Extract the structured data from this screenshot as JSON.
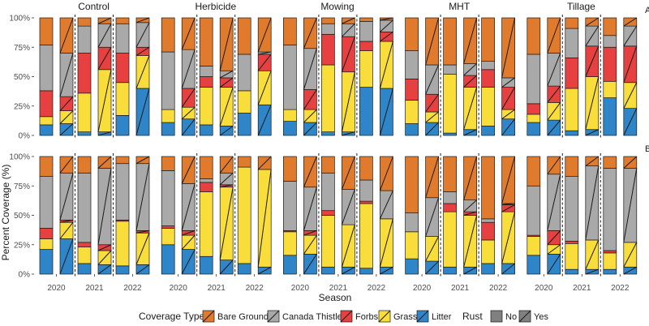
{
  "chart_data": {
    "type": "bar",
    "subtype": "stacked-percent",
    "ylabel": "Percent Coverage (%)",
    "xlabel": "Season",
    "y_ticks": [
      "0%",
      "25%",
      "50%",
      "75%",
      "100%"
    ],
    "ylim": [
      0,
      100
    ],
    "treatments": [
      "Control",
      "Herbicide",
      "Mowing",
      "MHT",
      "Tillage"
    ],
    "years": [
      "2020",
      "2021",
      "2022"
    ],
    "row_labels": [
      "A",
      "B"
    ],
    "stack_order": [
      "Litter",
      "Grass",
      "Forbs",
      "Canada Thistle",
      "Bare Ground"
    ],
    "legend": {
      "coverage_title": "Coverage Type",
      "coverage_items": [
        {
          "label": "Bare Ground",
          "color": "#E07B2E"
        },
        {
          "label": "Canada Thistle",
          "color": "#A9A9A9"
        },
        {
          "label": "Forbs",
          "color": "#E64040"
        },
        {
          "label": "Grass",
          "color": "#F9DD3A"
        },
        {
          "label": "Litter",
          "color": "#2E86C8"
        }
      ],
      "rust_title": "Rust",
      "rust_items": [
        {
          "label": "No",
          "color": "#808080"
        },
        {
          "label": "Yes",
          "color": "#808080"
        }
      ]
    },
    "rust_note": "Each year has two bars: left bar = Rust No, right bar = Rust Yes (hatched with diagonal line)",
    "panels": [
      {
        "row": "A",
        "treatment": "Control",
        "bars": [
          {
            "year": "2020",
            "rust": "No",
            "values": {
              "Litter": 9,
              "Grass": 7,
              "Forbs": 22,
              "Canada Thistle": 39,
              "Bare Ground": 23
            }
          },
          {
            "year": "2020",
            "rust": "Yes",
            "values": {
              "Litter": 10,
              "Grass": 11,
              "Forbs": 12,
              "Canada Thistle": 37,
              "Bare Ground": 30
            }
          },
          {
            "year": "2021",
            "rust": "No",
            "values": {
              "Litter": 3,
              "Grass": 33,
              "Forbs": 34,
              "Canada Thistle": 23,
              "Bare Ground": 7
            }
          },
          {
            "year": "2021",
            "rust": "Yes",
            "values": {
              "Litter": 3,
              "Grass": 53,
              "Forbs": 19,
              "Canada Thistle": 20,
              "Bare Ground": 5
            }
          },
          {
            "year": "2022",
            "rust": "No",
            "values": {
              "Litter": 17,
              "Grass": 28,
              "Forbs": 25,
              "Canada Thistle": 25,
              "Bare Ground": 5
            }
          },
          {
            "year": "2022",
            "rust": "Yes",
            "values": {
              "Litter": 40,
              "Grass": 28,
              "Forbs": 7,
              "Canada Thistle": 21,
              "Bare Ground": 4
            }
          }
        ]
      },
      {
        "row": "A",
        "treatment": "Herbicide",
        "bars": [
          {
            "year": "2020",
            "rust": "No",
            "values": {
              "Litter": 11,
              "Grass": 11,
              "Forbs": 0,
              "Canada Thistle": 49,
              "Bare Ground": 29
            }
          },
          {
            "year": "2020",
            "rust": "Yes",
            "values": {
              "Litter": 14,
              "Grass": 10,
              "Forbs": 16,
              "Canada Thistle": 33,
              "Bare Ground": 27
            }
          },
          {
            "year": "2021",
            "rust": "No",
            "values": {
              "Litter": 9,
              "Grass": 32,
              "Forbs": 9,
              "Canada Thistle": 9,
              "Bare Ground": 41
            }
          },
          {
            "year": "2021",
            "rust": "Yes",
            "values": {
              "Litter": 8,
              "Grass": 33,
              "Forbs": 8,
              "Canada Thistle": 6,
              "Bare Ground": 45
            }
          },
          {
            "year": "2022",
            "rust": "No",
            "values": {
              "Litter": 19,
              "Grass": 19,
              "Forbs": 0,
              "Canada Thistle": 31,
              "Bare Ground": 31
            }
          },
          {
            "year": "2022",
            "rust": "Yes",
            "values": {
              "Litter": 26,
              "Grass": 29,
              "Forbs": 14,
              "Canada Thistle": 2,
              "Bare Ground": 29
            }
          }
        ]
      },
      {
        "row": "A",
        "treatment": "Mowing",
        "bars": [
          {
            "year": "2020",
            "rust": "No",
            "values": {
              "Litter": 12,
              "Grass": 10,
              "Forbs": 0,
              "Canada Thistle": 55,
              "Bare Ground": 23
            }
          },
          {
            "year": "2020",
            "rust": "Yes",
            "values": {
              "Litter": 11,
              "Grass": 11,
              "Forbs": 17,
              "Canada Thistle": 35,
              "Bare Ground": 26
            }
          },
          {
            "year": "2021",
            "rust": "No",
            "values": {
              "Litter": 3,
              "Grass": 57,
              "Forbs": 26,
              "Canada Thistle": 9,
              "Bare Ground": 5
            }
          },
          {
            "year": "2021",
            "rust": "Yes",
            "values": {
              "Litter": 3,
              "Grass": 51,
              "Forbs": 30,
              "Canada Thistle": 11,
              "Bare Ground": 5
            }
          },
          {
            "year": "2022",
            "rust": "No",
            "values": {
              "Litter": 41,
              "Grass": 31,
              "Forbs": 8,
              "Canada Thistle": 17,
              "Bare Ground": 3
            }
          },
          {
            "year": "2022",
            "rust": "Yes",
            "values": {
              "Litter": 40,
              "Grass": 40,
              "Forbs": 8,
              "Canada Thistle": 10,
              "Bare Ground": 2
            }
          }
        ]
      },
      {
        "row": "A",
        "treatment": "MHT",
        "bars": [
          {
            "year": "2020",
            "rust": "No",
            "values": {
              "Litter": 10,
              "Grass": 20,
              "Forbs": 18,
              "Canada Thistle": 24,
              "Bare Ground": 28
            }
          },
          {
            "year": "2020",
            "rust": "Yes",
            "values": {
              "Litter": 11,
              "Grass": 9,
              "Forbs": 15,
              "Canada Thistle": 25,
              "Bare Ground": 40
            }
          },
          {
            "year": "2021",
            "rust": "No",
            "values": {
              "Litter": 2,
              "Grass": 50,
              "Forbs": 0,
              "Canada Thistle": 8,
              "Bare Ground": 40
            }
          },
          {
            "year": "2021",
            "rust": "Yes",
            "values": {
              "Litter": 5,
              "Grass": 36,
              "Forbs": 10,
              "Canada Thistle": 10,
              "Bare Ground": 39
            }
          },
          {
            "year": "2022",
            "rust": "No",
            "values": {
              "Litter": 8,
              "Grass": 33,
              "Forbs": 15,
              "Canada Thistle": 7,
              "Bare Ground": 37
            }
          },
          {
            "year": "2022",
            "rust": "Yes",
            "values": {
              "Litter": 14,
              "Grass": 8,
              "Forbs": 19,
              "Canada Thistle": 8,
              "Bare Ground": 51
            }
          }
        ]
      },
      {
        "row": "A",
        "treatment": "Tillage",
        "bars": [
          {
            "year": "2020",
            "rust": "No",
            "values": {
              "Litter": 11,
              "Grass": 7,
              "Forbs": 9,
              "Canada Thistle": 42,
              "Bare Ground": 31
            }
          },
          {
            "year": "2020",
            "rust": "Yes",
            "values": {
              "Litter": 13,
              "Grass": 15,
              "Forbs": 14,
              "Canada Thistle": 28,
              "Bare Ground": 30
            }
          },
          {
            "year": "2021",
            "rust": "No",
            "values": {
              "Litter": 4,
              "Grass": 36,
              "Forbs": 26,
              "Canada Thistle": 25,
              "Bare Ground": 9
            }
          },
          {
            "year": "2021",
            "rust": "Yes",
            "values": {
              "Litter": 5,
              "Grass": 45,
              "Forbs": 26,
              "Canada Thistle": 17,
              "Bare Ground": 7
            }
          },
          {
            "year": "2022",
            "rust": "No",
            "values": {
              "Litter": 32,
              "Grass": 14,
              "Forbs": 29,
              "Canada Thistle": 10,
              "Bare Ground": 15
            }
          },
          {
            "year": "2022",
            "rust": "Yes",
            "values": {
              "Litter": 23,
              "Grass": 22,
              "Forbs": 31,
              "Canada Thistle": 17,
              "Bare Ground": 7
            }
          }
        ]
      },
      {
        "row": "B",
        "treatment": "Control",
        "bars": [
          {
            "year": "2020",
            "rust": "No",
            "values": {
              "Litter": 21,
              "Grass": 9,
              "Forbs": 9,
              "Canada Thistle": 44,
              "Bare Ground": 17
            }
          },
          {
            "year": "2020",
            "rust": "Yes",
            "values": {
              "Litter": 30,
              "Grass": 14,
              "Forbs": 2,
              "Canada Thistle": 40,
              "Bare Ground": 14
            }
          },
          {
            "year": "2021",
            "rust": "No",
            "values": {
              "Litter": 9,
              "Grass": 14,
              "Forbs": 4,
              "Canada Thistle": 59,
              "Bare Ground": 14
            }
          },
          {
            "year": "2021",
            "rust": "Yes",
            "values": {
              "Litter": 8,
              "Grass": 12,
              "Forbs": 5,
              "Canada Thistle": 65,
              "Bare Ground": 10
            }
          },
          {
            "year": "2022",
            "rust": "No",
            "values": {
              "Litter": 7,
              "Grass": 38,
              "Forbs": 1,
              "Canada Thistle": 48,
              "Bare Ground": 6
            }
          },
          {
            "year": "2022",
            "rust": "Yes",
            "values": {
              "Litter": 8,
              "Grass": 27,
              "Forbs": 2,
              "Canada Thistle": 57,
              "Bare Ground": 6
            }
          }
        ]
      },
      {
        "row": "B",
        "treatment": "Herbicide",
        "bars": [
          {
            "year": "2020",
            "rust": "No",
            "values": {
              "Litter": 25,
              "Grass": 14,
              "Forbs": 2,
              "Canada Thistle": 47,
              "Bare Ground": 12
            }
          },
          {
            "year": "2020",
            "rust": "Yes",
            "values": {
              "Litter": 21,
              "Grass": 12,
              "Forbs": 4,
              "Canada Thistle": 40,
              "Bare Ground": 23
            }
          },
          {
            "year": "2021",
            "rust": "No",
            "values": {
              "Litter": 15,
              "Grass": 55,
              "Forbs": 8,
              "Canada Thistle": 3,
              "Bare Ground": 19
            }
          },
          {
            "year": "2021",
            "rust": "Yes",
            "values": {
              "Litter": 12,
              "Grass": 62,
              "Forbs": 2,
              "Canada Thistle": 10,
              "Bare Ground": 14
            }
          },
          {
            "year": "2022",
            "rust": "No",
            "values": {
              "Litter": 9,
              "Grass": 82,
              "Forbs": 0,
              "Canada Thistle": 0,
              "Bare Ground": 9
            }
          },
          {
            "year": "2022",
            "rust": "Yes",
            "values": {
              "Litter": 6,
              "Grass": 83,
              "Forbs": 0,
              "Canada Thistle": 0,
              "Bare Ground": 11
            }
          }
        ]
      },
      {
        "row": "B",
        "treatment": "Mowing",
        "bars": [
          {
            "year": "2020",
            "rust": "No",
            "values": {
              "Litter": 16,
              "Grass": 20,
              "Forbs": 1,
              "Canada Thistle": 42,
              "Bare Ground": 21
            }
          },
          {
            "year": "2020",
            "rust": "Yes",
            "values": {
              "Litter": 17,
              "Grass": 16,
              "Forbs": 4,
              "Canada Thistle": 37,
              "Bare Ground": 26
            }
          },
          {
            "year": "2021",
            "rust": "No",
            "values": {
              "Litter": 6,
              "Grass": 44,
              "Forbs": 4,
              "Canada Thistle": 32,
              "Bare Ground": 14
            }
          },
          {
            "year": "2021",
            "rust": "Yes",
            "values": {
              "Litter": 6,
              "Grass": 36,
              "Forbs": 0,
              "Canada Thistle": 30,
              "Bare Ground": 28
            }
          },
          {
            "year": "2022",
            "rust": "No",
            "values": {
              "Litter": 5,
              "Grass": 55,
              "Forbs": 2,
              "Canada Thistle": 18,
              "Bare Ground": 20
            }
          },
          {
            "year": "2022",
            "rust": "Yes",
            "values": {
              "Litter": 6,
              "Grass": 41,
              "Forbs": 0,
              "Canada Thistle": 24,
              "Bare Ground": 29
            }
          }
        ]
      },
      {
        "row": "B",
        "treatment": "MHT",
        "bars": [
          {
            "year": "2020",
            "rust": "No",
            "values": {
              "Litter": 13,
              "Grass": 23,
              "Forbs": 0,
              "Canada Thistle": 16,
              "Bare Ground": 48
            }
          },
          {
            "year": "2020",
            "rust": "Yes",
            "values": {
              "Litter": 11,
              "Grass": 21,
              "Forbs": 0,
              "Canada Thistle": 33,
              "Bare Ground": 35
            }
          },
          {
            "year": "2021",
            "rust": "No",
            "values": {
              "Litter": 6,
              "Grass": 47,
              "Forbs": 7,
              "Canada Thistle": 10,
              "Bare Ground": 30
            }
          },
          {
            "year": "2021",
            "rust": "Yes",
            "values": {
              "Litter": 6,
              "Grass": 44,
              "Forbs": 3,
              "Canada Thistle": 10,
              "Bare Ground": 37
            }
          },
          {
            "year": "2022",
            "rust": "No",
            "values": {
              "Litter": 9,
              "Grass": 20,
              "Forbs": 15,
              "Canada Thistle": 3,
              "Bare Ground": 53
            }
          },
          {
            "year": "2022",
            "rust": "Yes",
            "values": {
              "Litter": 9,
              "Grass": 44,
              "Forbs": 6,
              "Canada Thistle": 1,
              "Bare Ground": 40
            }
          }
        ]
      },
      {
        "row": "B",
        "treatment": "Tillage",
        "bars": [
          {
            "year": "2020",
            "rust": "No",
            "values": {
              "Litter": 16,
              "Grass": 16,
              "Forbs": 1,
              "Canada Thistle": 42,
              "Bare Ground": 25
            }
          },
          {
            "year": "2020",
            "rust": "Yes",
            "values": {
              "Litter": 17,
              "Grass": 8,
              "Forbs": 12,
              "Canada Thistle": 48,
              "Bare Ground": 15
            }
          },
          {
            "year": "2021",
            "rust": "No",
            "values": {
              "Litter": 4,
              "Grass": 22,
              "Forbs": 2,
              "Canada Thistle": 55,
              "Bare Ground": 17
            }
          },
          {
            "year": "2021",
            "rust": "Yes",
            "values": {
              "Litter": 4,
              "Grass": 25,
              "Forbs": 0,
              "Canada Thistle": 63,
              "Bare Ground": 8
            }
          },
          {
            "year": "2022",
            "rust": "No",
            "values": {
              "Litter": 4,
              "Grass": 14,
              "Forbs": 2,
              "Canada Thistle": 70,
              "Bare Ground": 10
            }
          },
          {
            "year": "2022",
            "rust": "Yes",
            "values": {
              "Litter": 6,
              "Grass": 21,
              "Forbs": 0,
              "Canada Thistle": 63,
              "Bare Ground": 10
            }
          }
        ]
      }
    ]
  }
}
